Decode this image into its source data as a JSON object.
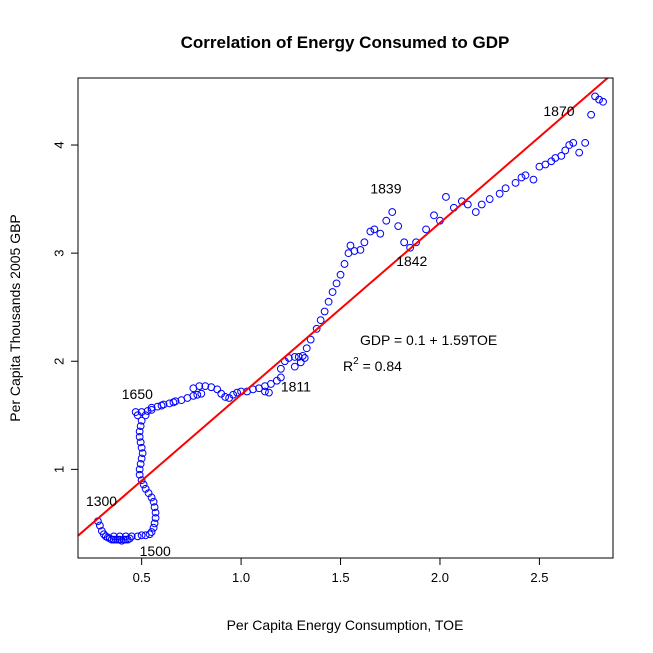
{
  "chart_data": {
    "type": "scatter",
    "title": "Correlation of Energy Consumed to GDP",
    "xlabel": "Per Capita Energy Consumption, TOE",
    "ylabel": "Per Capita Thousands 2005 GBP",
    "xlim": [
      0.18,
      2.87
    ],
    "ylim": [
      0.18,
      4.62
    ],
    "xticks": [
      0.5,
      1.0,
      1.5,
      2.0,
      2.5
    ],
    "xtick_labels": [
      "0.5",
      "1.0",
      "1.5",
      "2.0",
      "2.5"
    ],
    "yticks": [
      1,
      2,
      3,
      4
    ],
    "ytick_labels": [
      "1",
      "2",
      "3",
      "4"
    ],
    "grid": false,
    "marker_color": "#0000FF",
    "fit_color": "#FF0000",
    "fit_line": {
      "intercept": 0.1,
      "slope": 1.59
    },
    "equation_label": "GDP = 0.1 + 1.59TOE",
    "r2_prefix": "R",
    "r2_sup": "2",
    "r2_value": " = 0.84",
    "annotations": [
      {
        "text": "1300",
        "x": 0.22,
        "y": 0.66
      },
      {
        "text": "1500",
        "x": 0.49,
        "y": 0.2
      },
      {
        "text": "1650",
        "x": 0.4,
        "y": 1.65
      },
      {
        "text": "1811",
        "x": 1.2,
        "y": 1.72
      },
      {
        "text": "1839",
        "x": 1.65,
        "y": 3.55
      },
      {
        "text": "1842",
        "x": 1.78,
        "y": 2.88
      },
      {
        "text": "1870",
        "x": 2.52,
        "y": 4.27
      }
    ],
    "points": [
      [
        0.28,
        0.52
      ],
      [
        0.29,
        0.48
      ],
      [
        0.3,
        0.43
      ],
      [
        0.31,
        0.4
      ],
      [
        0.32,
        0.38
      ],
      [
        0.33,
        0.37
      ],
      [
        0.34,
        0.36
      ],
      [
        0.35,
        0.35
      ],
      [
        0.36,
        0.35
      ],
      [
        0.37,
        0.35
      ],
      [
        0.38,
        0.35
      ],
      [
        0.39,
        0.35
      ],
      [
        0.4,
        0.34
      ],
      [
        0.41,
        0.35
      ],
      [
        0.42,
        0.35
      ],
      [
        0.43,
        0.35
      ],
      [
        0.44,
        0.36
      ],
      [
        0.36,
        0.38
      ],
      [
        0.39,
        0.38
      ],
      [
        0.42,
        0.38
      ],
      [
        0.45,
        0.38
      ],
      [
        0.48,
        0.38
      ],
      [
        0.5,
        0.39
      ],
      [
        0.52,
        0.39
      ],
      [
        0.54,
        0.4
      ],
      [
        0.55,
        0.42
      ],
      [
        0.56,
        0.46
      ],
      [
        0.565,
        0.5
      ],
      [
        0.57,
        0.55
      ],
      [
        0.57,
        0.6
      ],
      [
        0.565,
        0.65
      ],
      [
        0.56,
        0.7
      ],
      [
        0.55,
        0.74
      ],
      [
        0.535,
        0.78
      ],
      [
        0.52,
        0.82
      ],
      [
        0.51,
        0.86
      ],
      [
        0.5,
        0.9
      ],
      [
        0.49,
        0.95
      ],
      [
        0.49,
        1.0
      ],
      [
        0.495,
        1.05
      ],
      [
        0.5,
        1.1
      ],
      [
        0.505,
        1.15
      ],
      [
        0.5,
        1.2
      ],
      [
        0.495,
        1.25
      ],
      [
        0.49,
        1.3
      ],
      [
        0.49,
        1.35
      ],
      [
        0.495,
        1.4
      ],
      [
        0.5,
        1.45
      ],
      [
        0.48,
        1.5
      ],
      [
        0.47,
        1.53
      ],
      [
        0.5,
        1.53
      ],
      [
        0.53,
        1.54
      ],
      [
        0.55,
        1.55
      ],
      [
        0.52,
        1.5
      ],
      [
        0.55,
        1.57
      ],
      [
        0.58,
        1.58
      ],
      [
        0.61,
        1.6
      ],
      [
        0.64,
        1.61
      ],
      [
        0.67,
        1.63
      ],
      [
        0.7,
        1.64
      ],
      [
        0.73,
        1.66
      ],
      [
        0.76,
        1.68
      ],
      [
        0.78,
        1.69
      ],
      [
        0.8,
        1.7
      ],
      [
        0.6,
        1.59
      ],
      [
        0.66,
        1.62
      ],
      [
        0.76,
        1.75
      ],
      [
        0.79,
        1.77
      ],
      [
        0.82,
        1.77
      ],
      [
        0.85,
        1.76
      ],
      [
        0.88,
        1.74
      ],
      [
        0.9,
        1.7
      ],
      [
        0.92,
        1.67
      ],
      [
        0.94,
        1.66
      ],
      [
        0.96,
        1.69
      ],
      [
        0.98,
        1.71
      ],
      [
        1.0,
        1.72
      ],
      [
        1.03,
        1.72
      ],
      [
        1.06,
        1.74
      ],
      [
        1.09,
        1.75
      ],
      [
        1.12,
        1.77
      ],
      [
        1.15,
        1.79
      ],
      [
        1.18,
        1.82
      ],
      [
        1.2,
        1.85
      ],
      [
        1.12,
        1.72
      ],
      [
        1.14,
        1.71
      ],
      [
        1.2,
        1.93
      ],
      [
        1.22,
        2.0
      ],
      [
        1.24,
        2.03
      ],
      [
        1.27,
        2.04
      ],
      [
        1.29,
        2.04
      ],
      [
        1.31,
        2.05
      ],
      [
        1.27,
        1.95
      ],
      [
        1.3,
        1.99
      ],
      [
        1.32,
        2.03
      ],
      [
        1.33,
        2.12
      ],
      [
        1.35,
        2.2
      ],
      [
        1.38,
        2.3
      ],
      [
        1.4,
        2.38
      ],
      [
        1.42,
        2.46
      ],
      [
        1.44,
        2.55
      ],
      [
        1.46,
        2.64
      ],
      [
        1.48,
        2.72
      ],
      [
        1.5,
        2.8
      ],
      [
        1.52,
        2.9
      ],
      [
        1.54,
        3.0
      ],
      [
        1.55,
        3.07
      ],
      [
        1.57,
        3.02
      ],
      [
        1.6,
        3.03
      ],
      [
        1.62,
        3.1
      ],
      [
        1.65,
        3.2
      ],
      [
        1.67,
        3.22
      ],
      [
        1.7,
        3.18
      ],
      [
        1.73,
        3.3
      ],
      [
        1.76,
        3.38
      ],
      [
        1.79,
        3.25
      ],
      [
        1.82,
        3.1
      ],
      [
        1.85,
        3.05
      ],
      [
        1.88,
        3.1
      ],
      [
        1.93,
        3.22
      ],
      [
        1.97,
        3.35
      ],
      [
        2.0,
        3.3
      ],
      [
        2.03,
        3.52
      ],
      [
        2.07,
        3.42
      ],
      [
        2.11,
        3.48
      ],
      [
        2.14,
        3.45
      ],
      [
        2.18,
        3.38
      ],
      [
        2.21,
        3.45
      ],
      [
        2.25,
        3.5
      ],
      [
        2.3,
        3.55
      ],
      [
        2.33,
        3.6
      ],
      [
        2.38,
        3.65
      ],
      [
        2.41,
        3.7
      ],
      [
        2.43,
        3.72
      ],
      [
        2.47,
        3.68
      ],
      [
        2.5,
        3.8
      ],
      [
        2.53,
        3.82
      ],
      [
        2.56,
        3.85
      ],
      [
        2.58,
        3.88
      ],
      [
        2.61,
        3.9
      ],
      [
        2.63,
        3.95
      ],
      [
        2.65,
        4.0
      ],
      [
        2.67,
        4.02
      ],
      [
        2.7,
        3.93
      ],
      [
        2.73,
        4.02
      ],
      [
        2.76,
        4.28
      ],
      [
        2.78,
        4.45
      ],
      [
        2.8,
        4.42
      ],
      [
        2.82,
        4.4
      ]
    ]
  }
}
